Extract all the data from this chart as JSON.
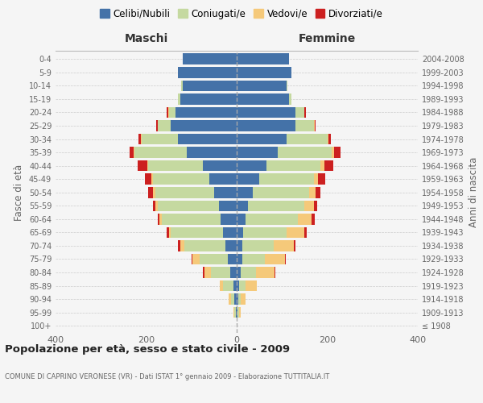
{
  "age_groups": [
    "0-4",
    "5-9",
    "10-14",
    "15-19",
    "20-24",
    "25-29",
    "30-34",
    "35-39",
    "40-44",
    "45-49",
    "50-54",
    "55-59",
    "60-64",
    "65-69",
    "70-74",
    "75-79",
    "80-84",
    "85-89",
    "90-94",
    "95-99",
    "100+"
  ],
  "birth_years": [
    "2004-2008",
    "1999-2003",
    "1994-1998",
    "1989-1993",
    "1984-1988",
    "1979-1983",
    "1974-1978",
    "1969-1973",
    "1964-1968",
    "1959-1963",
    "1954-1958",
    "1949-1953",
    "1944-1948",
    "1939-1943",
    "1934-1938",
    "1929-1933",
    "1924-1928",
    "1919-1923",
    "1914-1918",
    "1909-1913",
    "≤ 1908"
  ],
  "maschi_celibi": [
    120,
    130,
    120,
    125,
    135,
    145,
    130,
    110,
    75,
    60,
    50,
    40,
    35,
    30,
    25,
    20,
    15,
    8,
    5,
    2,
    0
  ],
  "maschi_coniugati": [
    0,
    0,
    2,
    5,
    15,
    30,
    80,
    115,
    120,
    125,
    130,
    135,
    130,
    115,
    90,
    62,
    42,
    22,
    8,
    3,
    0
  ],
  "maschi_vedovi": [
    0,
    0,
    0,
    0,
    2,
    0,
    2,
    2,
    3,
    3,
    5,
    5,
    5,
    5,
    10,
    15,
    15,
    8,
    5,
    2,
    0
  ],
  "maschi_divorziati": [
    0,
    0,
    0,
    0,
    2,
    3,
    5,
    10,
    20,
    15,
    10,
    5,
    5,
    5,
    5,
    2,
    2,
    0,
    0,
    0,
    0
  ],
  "femmine_nubili": [
    115,
    120,
    110,
    115,
    130,
    130,
    110,
    90,
    65,
    50,
    35,
    25,
    20,
    15,
    12,
    12,
    8,
    5,
    3,
    2,
    0
  ],
  "femmine_coniugate": [
    0,
    0,
    2,
    5,
    20,
    40,
    90,
    120,
    120,
    120,
    125,
    125,
    115,
    95,
    70,
    50,
    35,
    15,
    6,
    3,
    0
  ],
  "femmine_vedove": [
    0,
    0,
    0,
    0,
    0,
    2,
    3,
    5,
    8,
    10,
    15,
    20,
    30,
    40,
    45,
    45,
    40,
    25,
    10,
    3,
    0
  ],
  "femmine_divorziate": [
    0,
    0,
    0,
    0,
    2,
    3,
    5,
    15,
    20,
    15,
    10,
    8,
    8,
    5,
    3,
    2,
    2,
    0,
    0,
    0,
    0
  ],
  "colors": {
    "celibi": "#4472a8",
    "coniugati": "#c5d9a0",
    "vedovi": "#f5c97a",
    "divorziati": "#cc2020"
  },
  "xlim": 400,
  "title": "Popolazione per età, sesso e stato civile - 2009",
  "subtitle": "COMUNE DI CAPRINO VERONESE (VR) - Dati ISTAT 1° gennaio 2009 - Elaborazione TUTTITALIA.IT",
  "ylabel_left": "Fasce di età",
  "ylabel_right": "Anni di nascita",
  "legend_labels": [
    "Celibi/Nubili",
    "Coniugati/e",
    "Vedovi/e",
    "Divorziati/e"
  ],
  "maschi_label": "Maschi",
  "femmine_label": "Femmine",
  "bg_color": "#f5f5f5",
  "grid_color": "#cccccc",
  "text_color": "#666666",
  "title_color": "#222222",
  "xticks": [
    -400,
    -200,
    0,
    200,
    400
  ]
}
